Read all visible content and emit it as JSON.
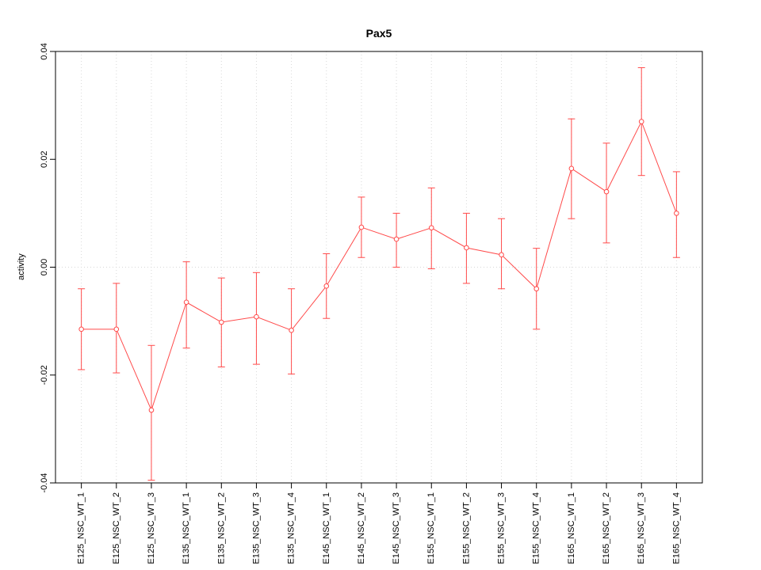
{
  "chart_data": {
    "type": "line",
    "title": "Pax5",
    "xlabel": "",
    "ylabel": "activity",
    "ylim": [
      -0.04,
      0.04
    ],
    "yticks": [
      -0.04,
      -0.02,
      0,
      0.02,
      0.04
    ],
    "grid": "dotted",
    "legend": "none",
    "series_color": "#ff4a4a",
    "grid_color": "#d8d8d8",
    "axis_color": "#000000",
    "categories": [
      "E125_NSC_WT_1",
      "E125_NSC_WT_2",
      "E125_NSC_WT_3",
      "E135_NSC_WT_1",
      "E135_NSC_WT_2",
      "E135_NSC_WT_3",
      "E135_NSC_WT_4",
      "E145_NSC_WT_1",
      "E145_NSC_WT_2",
      "E145_NSC_WT_3",
      "E155_NSC_WT_1",
      "E155_NSC_WT_2",
      "E155_NSC_WT_3",
      "E155_NSC_WT_4",
      "E165_NSC_WT_1",
      "E165_NSC_WT_2",
      "E165_NSC_WT_3",
      "E165_NSC_WT_4"
    ],
    "values": [
      -0.0115,
      -0.0115,
      -0.0265,
      -0.0065,
      -0.0102,
      -0.0092,
      -0.0117,
      -0.0035,
      0.0074,
      0.0052,
      0.0073,
      0.0036,
      0.0023,
      -0.004,
      0.0183,
      0.014,
      0.027,
      0.01
    ],
    "error_low": [
      -0.019,
      -0.0196,
      -0.0395,
      -0.015,
      -0.0185,
      -0.018,
      -0.0198,
      -0.0095,
      0.0018,
      0.0,
      -0.0003,
      -0.003,
      -0.004,
      -0.0115,
      0.009,
      0.0045,
      0.017,
      0.0018
    ],
    "error_high": [
      -0.004,
      -0.003,
      -0.0145,
      0.001,
      -0.002,
      -0.001,
      -0.004,
      0.0025,
      0.013,
      0.01,
      0.0147,
      0.01,
      0.009,
      0.0035,
      0.0275,
      0.023,
      0.037,
      0.0177
    ]
  }
}
